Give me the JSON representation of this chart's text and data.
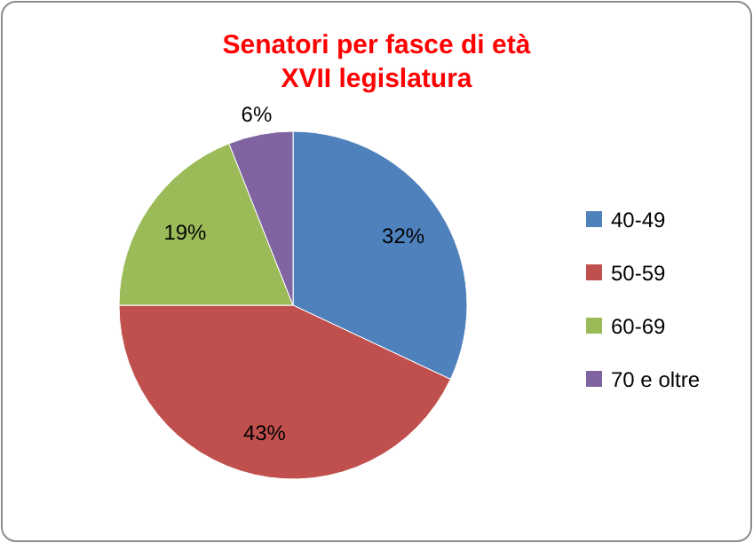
{
  "chart_data": {
    "type": "pie",
    "title": "Senatori per fasce di età",
    "subtitle": "XVII legislatura",
    "categories": [
      "40-49",
      "50-59",
      "60-69",
      "70 e oltre"
    ],
    "values": [
      32,
      43,
      19,
      6
    ],
    "colors": [
      "#4f81bd",
      "#c0504d",
      "#9bbb59",
      "#8064a2"
    ],
    "value_labels": [
      "32%",
      "43%",
      "19%",
      "6%"
    ],
    "legend": "right"
  }
}
